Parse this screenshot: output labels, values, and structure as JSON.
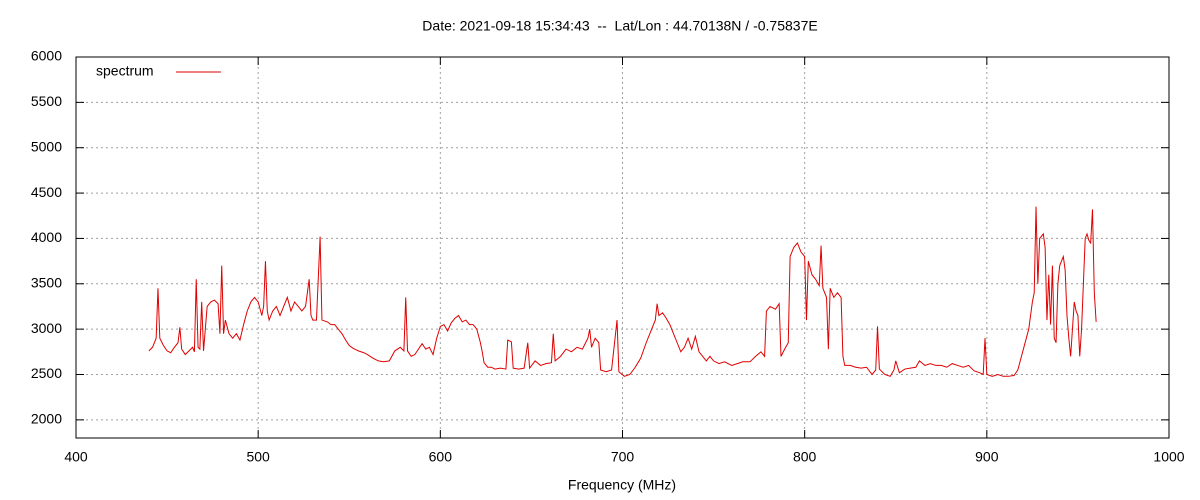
{
  "chart_data": {
    "type": "line",
    "title": "Date: 2021-09-18 15:34:43  --  Lat/Lon : 44.70138N / -0.75837E",
    "x_label": "Frequency (MHz)",
    "x": [
      440,
      442,
      444,
      445,
      446,
      448,
      450,
      452,
      454,
      456,
      457,
      458,
      460,
      462,
      464,
      465,
      466,
      467,
      468,
      469,
      470,
      472,
      474,
      476,
      478,
      479,
      480,
      481,
      482,
      484,
      486,
      488,
      490,
      492,
      494,
      496,
      498,
      500,
      502,
      503,
      504,
      505,
      506,
      508,
      510,
      512,
      514,
      516,
      518,
      520,
      522,
      524,
      526,
      528,
      529,
      530,
      532,
      534,
      535,
      538,
      540,
      542,
      544,
      546,
      548,
      550,
      552,
      555,
      558,
      560,
      563,
      566,
      569,
      572,
      575,
      578,
      580,
      581,
      582,
      584,
      586,
      588,
      590,
      592,
      594,
      596,
      598,
      600,
      602,
      604,
      606,
      608,
      610,
      612,
      614,
      616,
      618,
      620,
      622,
      623,
      624,
      626,
      628,
      630,
      633,
      636,
      637,
      639,
      640,
      643,
      646,
      648,
      649,
      652,
      655,
      658,
      661,
      662,
      663,
      666,
      669,
      672,
      675,
      678,
      681,
      682,
      683,
      685,
      687,
      688,
      691,
      694,
      697,
      698,
      701,
      704,
      707,
      710,
      713,
      716,
      718,
      719,
      720,
      722,
      724,
      726,
      728,
      730,
      732,
      734,
      736,
      738,
      740,
      742,
      744,
      746,
      748,
      750,
      753,
      756,
      760,
      763,
      766,
      770,
      773,
      776,
      778,
      779,
      781,
      784,
      786,
      787,
      789,
      791,
      792,
      794,
      796,
      798,
      800,
      801,
      802,
      804,
      806,
      808,
      809,
      810,
      812,
      813,
      814,
      816,
      818,
      820,
      821,
      822,
      825,
      828,
      831,
      834,
      837,
      839,
      840,
      841,
      844,
      847,
      849,
      850,
      852,
      855,
      858,
      861,
      863,
      866,
      869,
      872,
      875,
      878,
      881,
      884,
      887,
      890,
      893,
      896,
      898,
      899,
      900,
      903,
      906,
      909,
      912,
      915,
      917,
      919,
      921,
      923,
      925,
      926,
      927,
      928,
      929,
      931,
      932,
      933,
      934,
      935,
      936,
      937,
      938,
      939,
      940,
      941,
      942,
      943,
      944,
      945,
      946,
      947,
      948,
      949,
      950,
      951,
      952,
      953,
      954,
      955,
      956,
      957,
      958,
      959,
      960
    ],
    "series": [
      {
        "name": "spectrum",
        "color": "#e00000",
        "values": [
          2760,
          2800,
          2900,
          3450,
          2900,
          2820,
          2760,
          2740,
          2800,
          2850,
          3020,
          2780,
          2720,
          2760,
          2800,
          2750,
          3550,
          2800,
          2780,
          3300,
          2760,
          3250,
          3300,
          3320,
          3280,
          2950,
          3700,
          2950,
          3100,
          2950,
          2900,
          2950,
          2880,
          3050,
          3200,
          3300,
          3350,
          3300,
          3150,
          3250,
          3750,
          3200,
          3100,
          3200,
          3250,
          3150,
          3250,
          3350,
          3200,
          3300,
          3250,
          3200,
          3250,
          3550,
          3150,
          3100,
          3100,
          4020,
          3100,
          3080,
          3050,
          3050,
          3000,
          2950,
          2880,
          2820,
          2790,
          2760,
          2740,
          2720,
          2680,
          2650,
          2640,
          2650,
          2760,
          2800,
          2760,
          3350,
          2760,
          2700,
          2720,
          2780,
          2840,
          2780,
          2800,
          2720,
          2900,
          3030,
          3050,
          2980,
          3070,
          3120,
          3150,
          3080,
          3100,
          3050,
          3050,
          3000,
          2850,
          2750,
          2630,
          2580,
          2580,
          2560,
          2570,
          2560,
          2880,
          2860,
          2570,
          2560,
          2570,
          2850,
          2570,
          2650,
          2600,
          2620,
          2630,
          2950,
          2650,
          2700,
          2780,
          2750,
          2800,
          2780,
          2900,
          3000,
          2800,
          2900,
          2850,
          2550,
          2530,
          2550,
          3100,
          2530,
          2480,
          2500,
          2580,
          2680,
          2850,
          3000,
          3100,
          3280,
          3150,
          3180,
          3120,
          3050,
          2950,
          2850,
          2750,
          2800,
          2900,
          2780,
          2920,
          2750,
          2700,
          2650,
          2700,
          2650,
          2620,
          2640,
          2600,
          2620,
          2640,
          2640,
          2700,
          2750,
          2700,
          3200,
          3250,
          3220,
          3280,
          2700,
          2780,
          2850,
          3800,
          3900,
          3950,
          3850,
          3800,
          3100,
          3750,
          3600,
          3550,
          3480,
          3920,
          3450,
          3350,
          2780,
          3450,
          3350,
          3400,
          3350,
          2700,
          2600,
          2600,
          2580,
          2570,
          2580,
          2500,
          2550,
          3030,
          2560,
          2500,
          2480,
          2550,
          2650,
          2520,
          2560,
          2570,
          2580,
          2650,
          2600,
          2620,
          2600,
          2600,
          2580,
          2620,
          2600,
          2580,
          2600,
          2540,
          2520,
          2500,
          2900,
          2500,
          2480,
          2500,
          2480,
          2480,
          2490,
          2550,
          2700,
          2850,
          3000,
          3300,
          3400,
          4350,
          3500,
          4000,
          4050,
          3900,
          3100,
          3600,
          3050,
          3700,
          2900,
          2850,
          3500,
          3700,
          3750,
          3800,
          3650,
          3150,
          2900,
          2700,
          3000,
          3300,
          3200,
          3150,
          2700,
          3000,
          3500,
          4000,
          4050,
          3980,
          3950,
          4320,
          3400,
          3080
        ]
      }
    ],
    "xlim": [
      400,
      1000
    ],
    "xticks": [
      400,
      500,
      600,
      700,
      800,
      900,
      1000
    ],
    "ylim": [
      1800,
      6000
    ],
    "yticks": [
      2000,
      2500,
      3000,
      3500,
      4000,
      4500,
      5000,
      5500,
      6000
    ],
    "grid": true,
    "legend": "top-left"
  }
}
